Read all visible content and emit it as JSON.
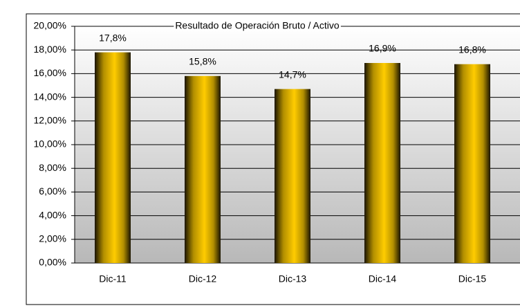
{
  "chart_data": {
    "type": "bar",
    "subtitle": "Resultado de Operación Bruto / Activo",
    "categories": [
      "Dic-11",
      "Dic-12",
      "Dic-13",
      "Dic-14",
      "Dic-15"
    ],
    "values": [
      17.8,
      15.8,
      14.7,
      16.9,
      16.8
    ],
    "value_labels": [
      "17,8%",
      "15,8%",
      "14,7%",
      "16,9%",
      "16,8%"
    ],
    "color": "#ffcc00",
    "ylim": [
      0,
      20
    ],
    "yticks": [
      {
        "value": 0,
        "label": "0,00%"
      },
      {
        "value": 2,
        "label": "2,00%"
      },
      {
        "value": 4,
        "label": "4,00%"
      },
      {
        "value": 6,
        "label": "6,00%"
      },
      {
        "value": 8,
        "label": "8,00%"
      },
      {
        "value": 10,
        "label": "10,00%"
      },
      {
        "value": 12,
        "label": "12,00%"
      },
      {
        "value": 14,
        "label": "14,00%"
      },
      {
        "value": 16,
        "label": "16,00%"
      },
      {
        "value": 18,
        "label": "18,00%"
      },
      {
        "value": 20,
        "label": "20,00%"
      }
    ],
    "grid": true
  }
}
